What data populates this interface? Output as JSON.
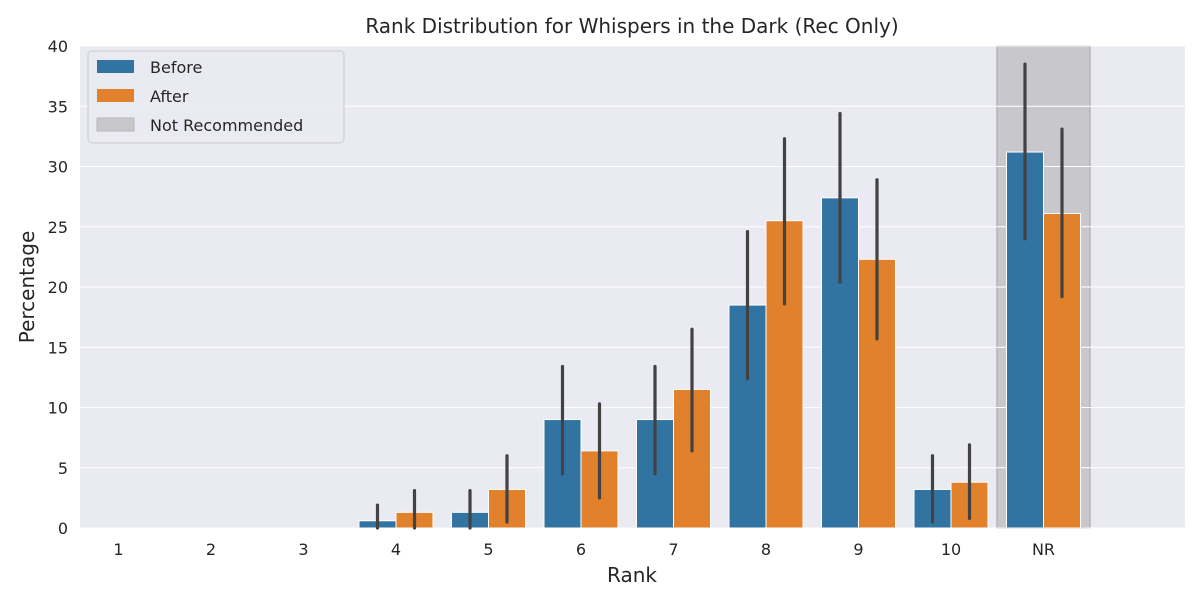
{
  "chart_data": {
    "type": "bar",
    "title": "Rank Distribution for Whispers in the Dark (Rec Only)",
    "xlabel": "Rank",
    "ylabel": "Percentage",
    "categories": [
      "1",
      "2",
      "3",
      "4",
      "5",
      "6",
      "7",
      "8",
      "9",
      "10",
      "NR"
    ],
    "ylim": [
      0,
      40
    ],
    "yticks": [
      0,
      5,
      10,
      15,
      20,
      25,
      30,
      35,
      40
    ],
    "grid": true,
    "legend_position": "top-left",
    "highlight": {
      "category": "NR",
      "label": "Not Recommended",
      "color": "#c8c8cc"
    },
    "series": [
      {
        "name": "Before",
        "color": "#3274a1",
        "values": [
          0,
          0,
          0,
          0.6,
          1.3,
          9.0,
          9.0,
          18.5,
          27.4,
          3.2,
          31.2
        ],
        "ci": [
          [
            0,
            0
          ],
          [
            0,
            0
          ],
          [
            0,
            0
          ],
          [
            0,
            1.9
          ],
          [
            0,
            3.1
          ],
          [
            4.5,
            13.4
          ],
          [
            4.5,
            13.4
          ],
          [
            12.4,
            24.6
          ],
          [
            20.4,
            34.4
          ],
          [
            0.5,
            6.0
          ],
          [
            24.0,
            38.5
          ]
        ]
      },
      {
        "name": "After",
        "color": "#e1812c",
        "values": [
          0,
          0,
          0,
          1.3,
          3.2,
          6.4,
          11.5,
          25.5,
          22.3,
          3.8,
          26.1
        ],
        "ci": [
          [
            0,
            0
          ],
          [
            0,
            0
          ],
          [
            0,
            0
          ],
          [
            0,
            3.1
          ],
          [
            0.5,
            6.0
          ],
          [
            2.5,
            10.3
          ],
          [
            6.4,
            16.5
          ],
          [
            18.6,
            32.3
          ],
          [
            15.7,
            28.9
          ],
          [
            0.8,
            6.9
          ],
          [
            19.2,
            33.1
          ]
        ]
      }
    ]
  }
}
